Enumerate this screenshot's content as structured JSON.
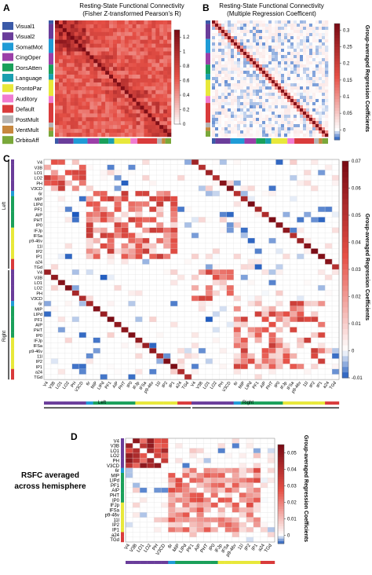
{
  "legend": {
    "items": [
      {
        "label": "Visual1",
        "color": "#3b5aa8"
      },
      {
        "label": "Visual2",
        "color": "#6a3d9a"
      },
      {
        "label": "SomatMot",
        "color": "#1f9bd6"
      },
      {
        "label": "CingOper",
        "color": "#9b3fa8"
      },
      {
        "label": "DorsAtten",
        "color": "#1aa05a"
      },
      {
        "label": "Language",
        "color": "#1a9fb0"
      },
      {
        "label": "FrontoPar",
        "color": "#e8e83a"
      },
      {
        "label": "Auditory",
        "color": "#f07bd0"
      },
      {
        "label": "Default",
        "color": "#d93b3b"
      },
      {
        "label": "PostMult",
        "color": "#b5b5b5"
      },
      {
        "label": "VentMult",
        "color": "#c7873e"
      },
      {
        "label": "OrbitoAff",
        "color": "#7aa83a"
      }
    ]
  },
  "panels": {
    "a": {
      "letter": "A",
      "title_line1": "Resting-State Functional Connectivity",
      "title_line2": "(Fisher Z-transformed Pearson's R)"
    },
    "b": {
      "letter": "B",
      "title_line1": "Resting-State Functional Connectivity",
      "title_line2": "(Multiple Regression Coefficent)",
      "cbar_label": "Group-averaged Regression Coefficients"
    },
    "c": {
      "letter": "C",
      "cbar_label": "Group-averaged Regression Coefficients",
      "left_label": "Left",
      "right_label": "Right"
    },
    "d": {
      "letter": "D",
      "note_line1": "RSFC averaged",
      "note_line2": "across hemisphere",
      "cbar_label": "Group-averaged Regression Coefficients"
    }
  },
  "chart_data": [
    {
      "type": "heatmap",
      "panel": "A",
      "title": "Resting-State Functional Connectivity (Fisher Z-transformed Pearson's R)",
      "colorbar_ticks": [
        1.2,
        1,
        0.8,
        0.6,
        0.4,
        0.2,
        0
      ],
      "clim": [
        0,
        1.3
      ]
    },
    {
      "type": "heatmap",
      "panel": "B",
      "title": "Resting-State Functional Connectivity (Multiple Regression Coefficent)",
      "colorbar_ticks": [
        0.3,
        0.25,
        0.2,
        0.15,
        0.1,
        0.05,
        0
      ],
      "clim": [
        -0.03,
        0.32
      ]
    },
    {
      "type": "heatmap",
      "panel": "C",
      "region_labels": [
        "V4",
        "V3B",
        "LO1",
        "LO2",
        "PH",
        "V3CD",
        "6r",
        "MIP",
        "LIPd",
        "PF1",
        "AIP",
        "PHT",
        "IP0",
        "IFJp",
        "IFSa",
        "p9-46v",
        "11l",
        "IP2",
        "IP1",
        "a24",
        "TGd"
      ],
      "hemispheres": [
        "Left",
        "Right"
      ],
      "colorbar_ticks": [
        0.07,
        0.06,
        0.05,
        0.04,
        0.03,
        0.02,
        0.01,
        0,
        -0.01
      ],
      "clim": [
        -0.01,
        0.07
      ]
    },
    {
      "type": "heatmap",
      "panel": "D",
      "region_labels": [
        "V4",
        "V3B",
        "LO1",
        "LO2",
        "PH",
        "V3CD",
        "6r",
        "MIP",
        "LIPd",
        "PF1",
        "AIP",
        "PHT",
        "IP0",
        "IFJp",
        "IFSa",
        "p9-46v",
        "11l",
        "IP2",
        "IP1",
        "a24",
        "TGd"
      ],
      "colorbar_ticks": [
        0.05,
        0.04,
        0.03,
        0.02,
        0.01,
        0
      ],
      "clim": [
        -0.005,
        0.055
      ]
    }
  ]
}
